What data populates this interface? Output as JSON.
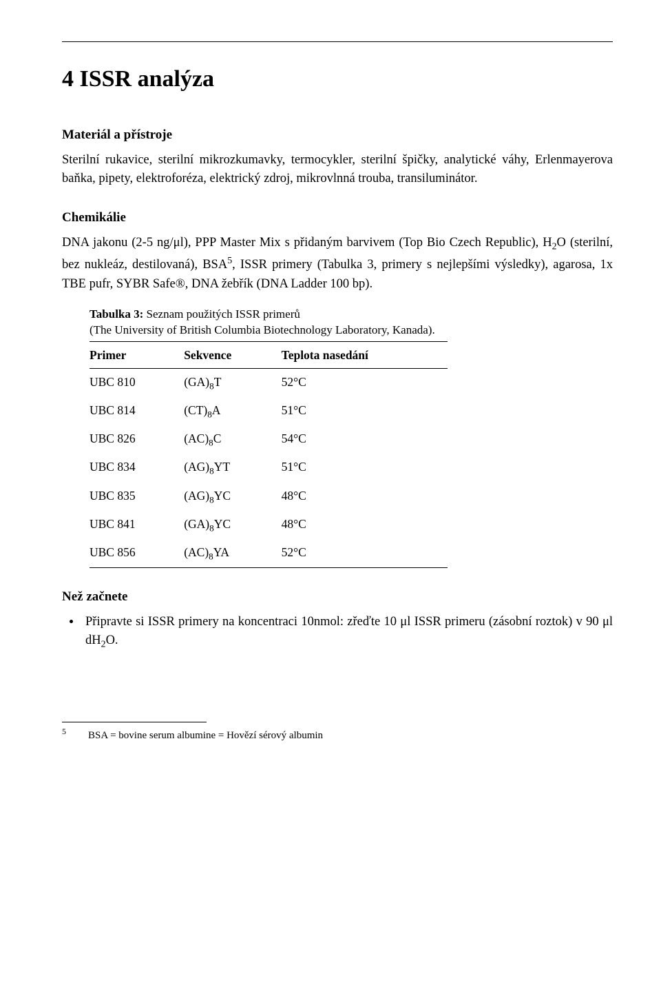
{
  "title": "4  ISSR analýza",
  "sections": {
    "material": {
      "heading": "Materiál a přístroje",
      "text": "Sterilní rukavice, sterilní mikrozkumavky, termocykler, sterilní špičky, analytické váhy, Erlenmayerova baňka, pipety, elektroforéza, elektrický zdroj, mikrovlnná trouba, transiluminátor."
    },
    "chemicals": {
      "heading": "Chemikálie",
      "text_pre": "DNA jakonu (2-5 ng/μl), PPP Master Mix s přidaným barvivem (Top Bio Czech Republic), H",
      "text_h2o_sub": "2",
      "text_mid": "O (sterilní, bez nukleáz, destilovaná), BSA",
      "text_bsa_sup": "5",
      "text_post": ", ISSR primery (Tabulka 3, primery s nejlepšími výsledky), agarosa, 1x TBE pufr, SYBR Safe®, DNA žebřík (DNA Ladder 100 bp)."
    },
    "table": {
      "caption_bold": "Tabulka 3:",
      "caption_rest": " Seznam použitých ISSR primerů",
      "caption_sub": "(The University of British Columbia Biotechnology Laboratory, Kanada).",
      "headers": [
        "Primer",
        "Sekvence",
        "Teplota nasedání"
      ],
      "rows": [
        {
          "primer": "UBC 810",
          "seq_pre": "(GA)",
          "seq_sub": "8",
          "seq_post": "T",
          "temp": "52°C"
        },
        {
          "primer": "UBC 814",
          "seq_pre": "(CT)",
          "seq_sub": "8",
          "seq_post": "A",
          "temp": "51°C"
        },
        {
          "primer": "UBC 826",
          "seq_pre": "(AC)",
          "seq_sub": "8",
          "seq_post": "C",
          "temp": "54°C"
        },
        {
          "primer": "UBC 834",
          "seq_pre": "(AG)",
          "seq_sub": "8",
          "seq_post": "YT",
          "temp": "51°C"
        },
        {
          "primer": "UBC 835",
          "seq_pre": "(AG)",
          "seq_sub": "8",
          "seq_post": "YC",
          "temp": "48°C"
        },
        {
          "primer": "UBC 841",
          "seq_pre": "(GA)",
          "seq_sub": "8",
          "seq_post": "YC",
          "temp": "48°C"
        },
        {
          "primer": "UBC 856",
          "seq_pre": "(AC)",
          "seq_sub": "8",
          "seq_post": "YA",
          "temp": "52°C"
        }
      ]
    },
    "before": {
      "heading": "Než začnete",
      "bullet_pre": "Připravte si ISSR primery na koncentraci 10nmol: zřeďte 10 μl ISSR primeru (zásobní roztok) v 90 μl dH",
      "bullet_sub": "2",
      "bullet_post": "O."
    }
  },
  "footnote": {
    "num": "5",
    "text": "BSA =  bovine serum albumine = Hovězí sérový albumin"
  }
}
